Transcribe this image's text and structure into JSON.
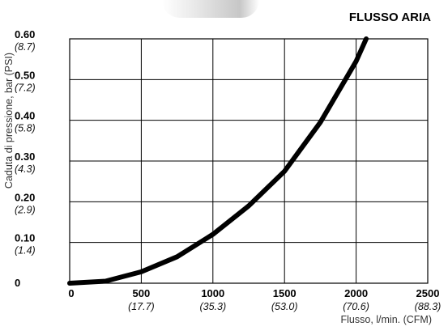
{
  "chart_data": {
    "type": "line",
    "title": "FLUSSO ARIA",
    "ylabel": "Caduta di pressione, bar (PSI)",
    "xlabel": "Flusso, l/min. (CFM)",
    "xlim": [
      0,
      2500
    ],
    "ylim": [
      0,
      0.6
    ],
    "grid": true,
    "x_ticks": [
      {
        "value": 0,
        "label": "0",
        "sub": ""
      },
      {
        "value": 500,
        "label": "500",
        "sub": "(17.7)"
      },
      {
        "value": 1000,
        "label": "1000",
        "sub": "(35.3)"
      },
      {
        "value": 1500,
        "label": "1500",
        "sub": "(53.0)"
      },
      {
        "value": 2000,
        "label": "2000",
        "sub": "(70.6)"
      },
      {
        "value": 2500,
        "label": "2500",
        "sub": "(88.3)"
      }
    ],
    "y_ticks": [
      {
        "value": 0,
        "label": "0",
        "sub": ""
      },
      {
        "value": 0.1,
        "label": "0.10",
        "sub": "(1.4)"
      },
      {
        "value": 0.2,
        "label": "0.20",
        "sub": "(2.9)"
      },
      {
        "value": 0.3,
        "label": "0.30",
        "sub": "(4.3)"
      },
      {
        "value": 0.4,
        "label": "0.40",
        "sub": "(5.8)"
      },
      {
        "value": 0.5,
        "label": "0.50",
        "sub": "(7.2)"
      },
      {
        "value": 0.6,
        "label": "0.60",
        "sub": "(8.7)"
      }
    ],
    "series": [
      {
        "color": "#000000",
        "x": [
          0,
          250,
          500,
          750,
          1000,
          1250,
          1500,
          1750,
          2000,
          2070
        ],
        "y": [
          0.0,
          0.005,
          0.028,
          0.065,
          0.12,
          0.19,
          0.275,
          0.395,
          0.545,
          0.6
        ]
      }
    ]
  }
}
